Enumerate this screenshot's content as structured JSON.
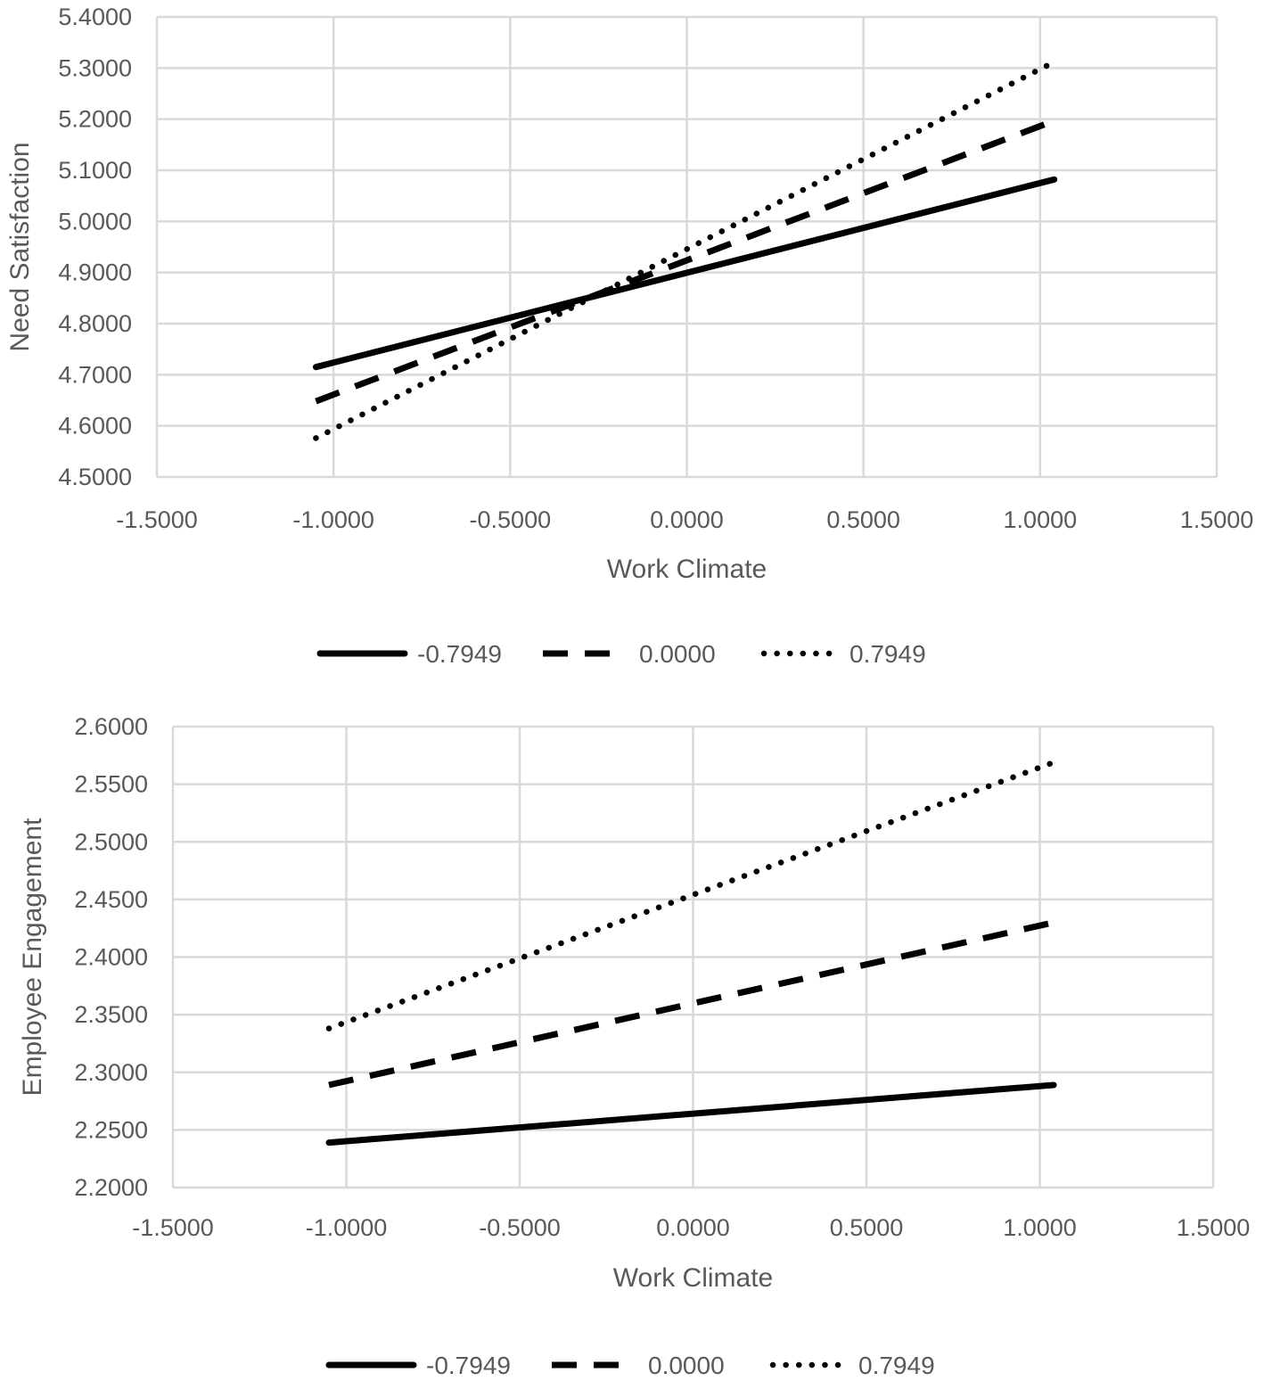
{
  "chart_data": [
    {
      "type": "line",
      "title": "",
      "xlabel": "Work Climate",
      "ylabel": "Need Satisfaction",
      "xlim": [
        -1.5,
        1.5
      ],
      "ylim": [
        4.5,
        5.4
      ],
      "x_ticks": [
        "-1.5000",
        "-1.0000",
        "-0.5000",
        "0.0000",
        "0.5000",
        "1.0000",
        "1.5000"
      ],
      "y_ticks": [
        "4.5000",
        "4.6000",
        "4.7000",
        "4.8000",
        "4.9000",
        "5.0000",
        "5.1000",
        "5.2000",
        "5.3000",
        "5.4000"
      ],
      "grid": true,
      "legend_position": "bottom",
      "series": [
        {
          "name": "-0.7949",
          "style": "solid",
          "x": [
            -1.05,
            1.04
          ],
          "y": [
            4.715,
            5.082
          ]
        },
        {
          "name": "0.0000",
          "style": "dashed",
          "x": [
            -1.05,
            1.04
          ],
          "y": [
            4.648,
            5.197
          ]
        },
        {
          "name": "0.7949",
          "style": "dotted",
          "x": [
            -1.05,
            1.04
          ],
          "y": [
            4.576,
            5.312
          ]
        }
      ]
    },
    {
      "type": "line",
      "title": "",
      "xlabel": "Work Climate",
      "ylabel": "Employee Engagement",
      "xlim": [
        -1.5,
        1.5
      ],
      "ylim": [
        2.2,
        2.6
      ],
      "x_ticks": [
        "-1.5000",
        "-1.0000",
        "-0.5000",
        "0.0000",
        "0.5000",
        "1.0000",
        "1.5000"
      ],
      "y_ticks": [
        "2.2000",
        "2.2500",
        "2.3000",
        "2.3500",
        "2.4000",
        "2.4500",
        "2.5000",
        "2.5500",
        "2.6000"
      ],
      "grid": true,
      "legend_position": "bottom",
      "series": [
        {
          "name": "-0.7949",
          "style": "solid",
          "x": [
            -1.05,
            1.04
          ],
          "y": [
            2.239,
            2.289
          ]
        },
        {
          "name": "0.0000",
          "style": "dashed",
          "x": [
            -1.05,
            1.04
          ],
          "y": [
            2.289,
            2.43
          ]
        },
        {
          "name": "0.7949",
          "style": "dotted",
          "x": [
            -1.05,
            1.04
          ],
          "y": [
            2.338,
            2.569
          ]
        }
      ]
    }
  ]
}
